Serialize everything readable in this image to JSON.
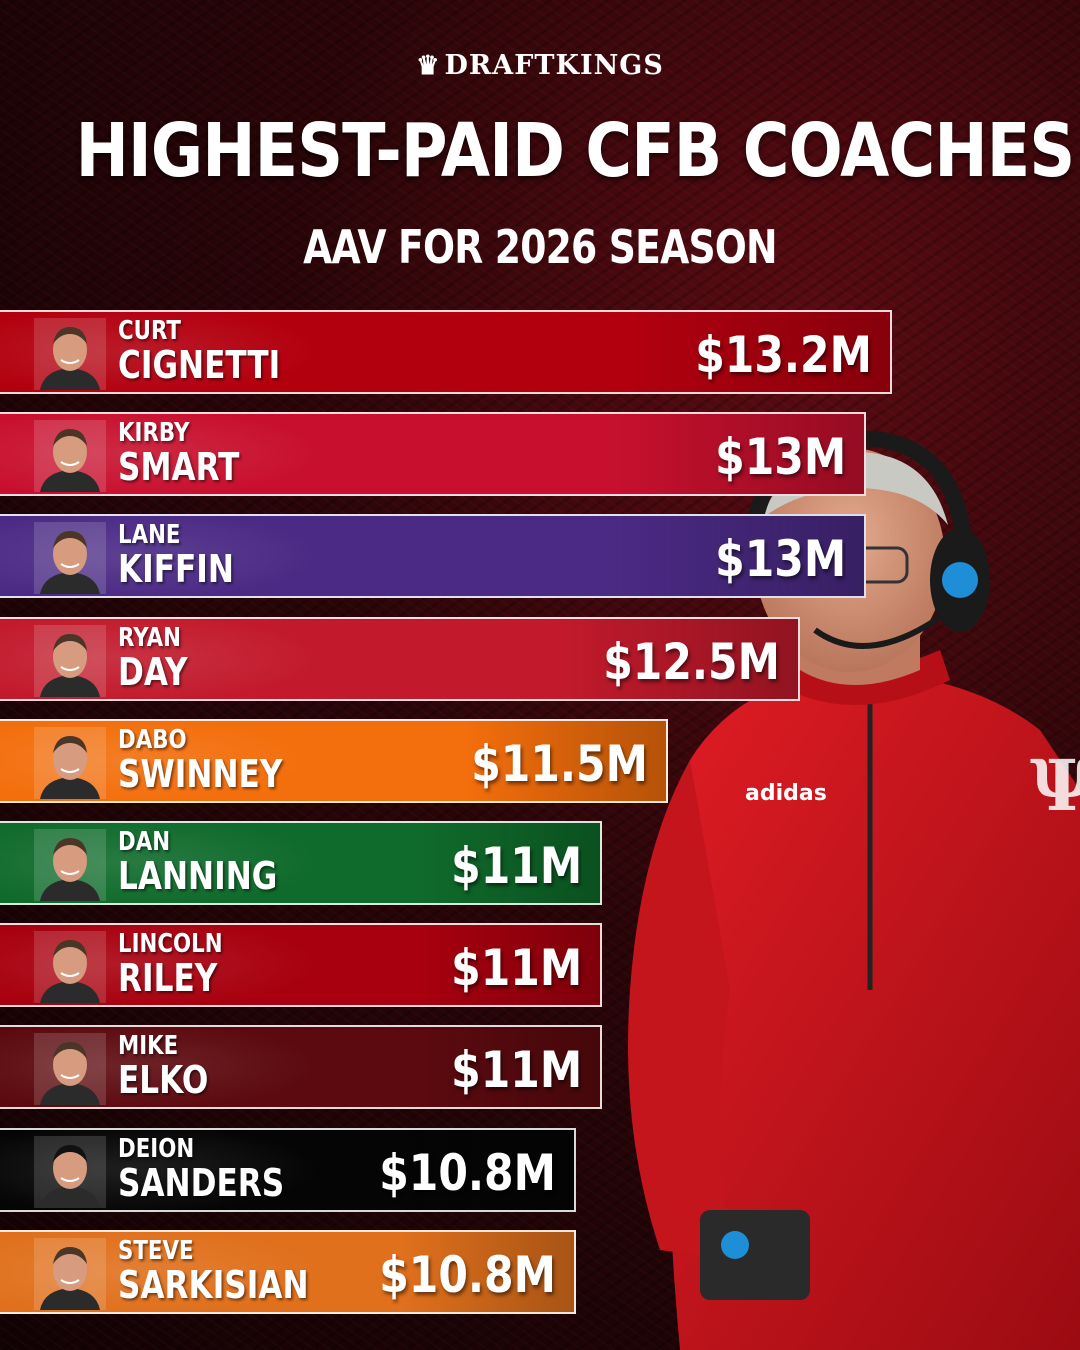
{
  "brand": {
    "name": "DRAFTKINGS"
  },
  "header": {
    "title": "HIGHEST-PAID CFB COACHES",
    "subtitle": "AAV FOR 2026 SEASON"
  },
  "chart_data": {
    "type": "bar",
    "orientation": "horizontal",
    "title": "HIGHEST-PAID CFB COACHES",
    "subtitle": "AAV FOR 2026 SEASON",
    "unit": "$M",
    "categories": [
      "CURT CIGNETTI",
      "KIRBY SMART",
      "LANE KIFFIN",
      "RYAN DAY",
      "DABO SWINNEY",
      "DAN LANNING",
      "LINCOLN RILEY",
      "MIKE ELKO",
      "DEION SANDERS",
      "STEVE SARKISIAN"
    ],
    "values": [
      13.2,
      13,
      13,
      12.5,
      11.5,
      11,
      11,
      11,
      10.8,
      10.8
    ],
    "bars": [
      {
        "first": "CURT",
        "last": "CIGNETTI",
        "value": 13.2,
        "label": "$13.2M",
        "color": "#b3000f"
      },
      {
        "first": "KIRBY",
        "last": "SMART",
        "value": 13,
        "label": "$13M",
        "color": "#c8102e"
      },
      {
        "first": "LANE",
        "last": "KIFFIN",
        "value": 13,
        "label": "$13M",
        "color": "#4b2a85"
      },
      {
        "first": "RYAN",
        "last": "DAY",
        "value": 12.5,
        "label": "$12.5M",
        "color": "#c21a2c"
      },
      {
        "first": "DABO",
        "last": "SWINNEY",
        "value": 11.5,
        "label": "$11.5M",
        "color": "#f36e0c"
      },
      {
        "first": "DAN",
        "last": "LANNING",
        "value": 11,
        "label": "$11M",
        "color": "#0f6b2b"
      },
      {
        "first": "LINCOLN",
        "last": "RILEY",
        "value": 11,
        "label": "$11M",
        "color": "#a8000e"
      },
      {
        "first": "MIKE",
        "last": "ELKO",
        "value": 11,
        "label": "$11M",
        "color": "#5c0a0f"
      },
      {
        "first": "DEION",
        "last": "SANDERS",
        "value": 10.8,
        "label": "$10.8M",
        "color": "#050505"
      },
      {
        "first": "STEVE",
        "last": "SARKISIAN",
        "value": 10.8,
        "label": "$10.8M",
        "color": "#e0701c"
      }
    ]
  }
}
